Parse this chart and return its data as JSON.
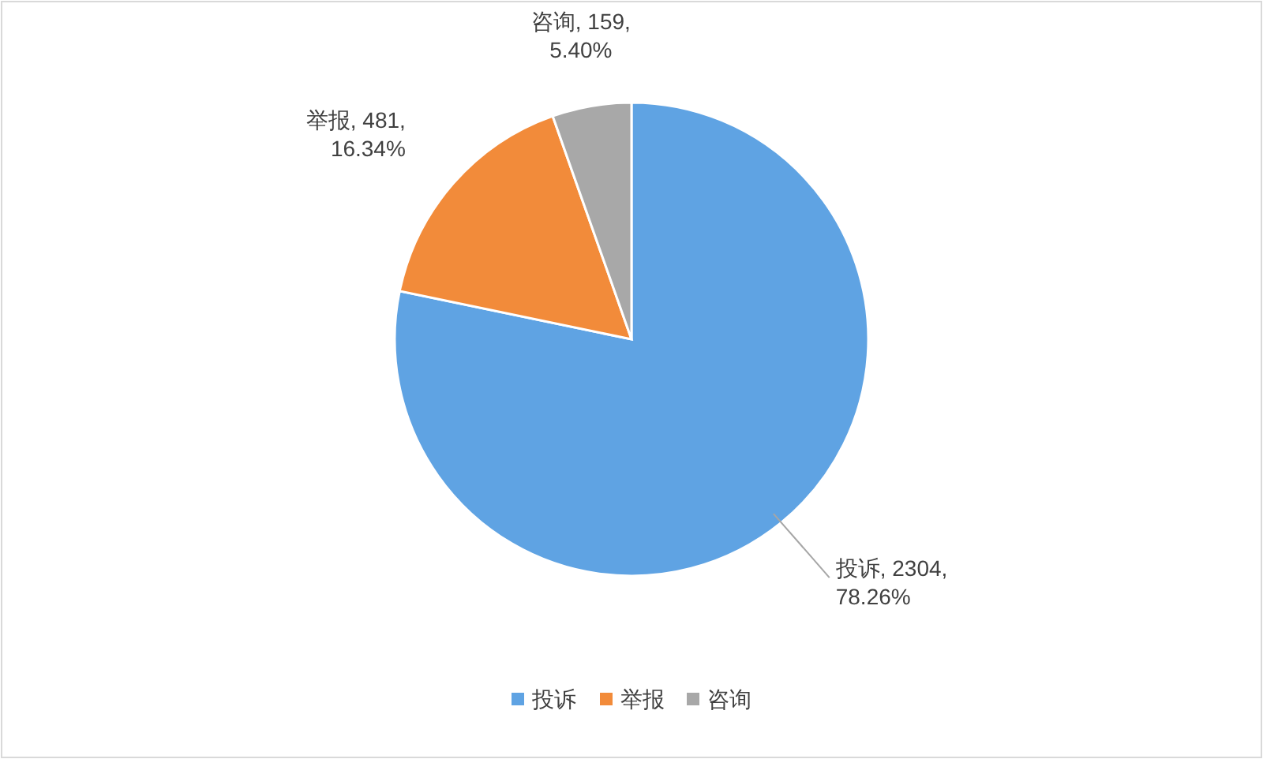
{
  "chart_data": {
    "type": "pie",
    "categories": [
      "投诉",
      "举报",
      "咨询"
    ],
    "values": [
      2304,
      481,
      159
    ],
    "colors": [
      "#5fa3e3",
      "#f28b3a",
      "#a8a8a8"
    ],
    "value_labels": [
      "投诉, 2304, 78.26%",
      "举报, 481, 16.34%",
      "咨询, 159, 5.40%"
    ],
    "legend": "bottom"
  }
}
